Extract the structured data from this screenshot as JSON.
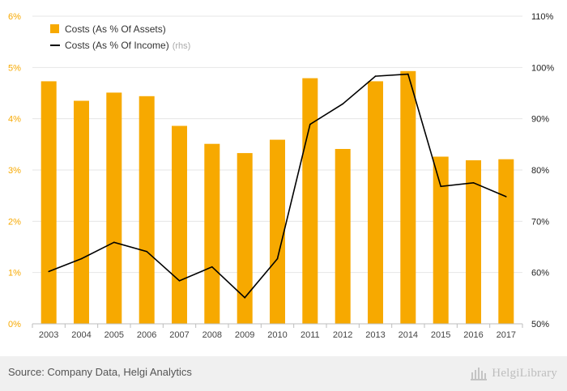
{
  "chart_data": {
    "type": "bar",
    "categories": [
      "2003",
      "2004",
      "2005",
      "2006",
      "2007",
      "2008",
      "2009",
      "2010",
      "2011",
      "2012",
      "2013",
      "2014",
      "2015",
      "2016",
      "2017"
    ],
    "series": [
      {
        "name": "Costs (As % Of Assets)",
        "type": "bar",
        "axis": "left",
        "color": "#f7a900",
        "values": [
          4.73,
          4.35,
          4.51,
          4.44,
          3.86,
          3.51,
          3.33,
          3.59,
          4.79,
          3.41,
          4.73,
          4.93,
          3.26,
          3.19,
          3.21
        ]
      },
      {
        "name": "Costs (As % Of Income)",
        "name_suffix": "(rhs)",
        "type": "line",
        "axis": "right",
        "color": "#000000",
        "values": [
          60.2,
          62.7,
          65.9,
          64.1,
          58.4,
          61.1,
          55.1,
          62.7,
          88.9,
          92.9,
          98.3,
          98.7,
          76.8,
          77.5,
          74.8
        ]
      }
    ],
    "y_left": {
      "ylim": [
        0,
        6
      ],
      "ticks": [
        "0%",
        "1%",
        "2%",
        "3%",
        "4%",
        "5%",
        "6%"
      ],
      "tick_color": "#f7a900"
    },
    "y_right": {
      "ylim": [
        50,
        110
      ],
      "ticks": [
        "50%",
        "60%",
        "70%",
        "80%",
        "90%",
        "100%",
        "110%"
      ]
    },
    "legend": "top-left",
    "grid": true
  },
  "footer": {
    "source": "Source: Company Data, Helgi Analytics",
    "logo_text": "HelgiLibrary"
  }
}
